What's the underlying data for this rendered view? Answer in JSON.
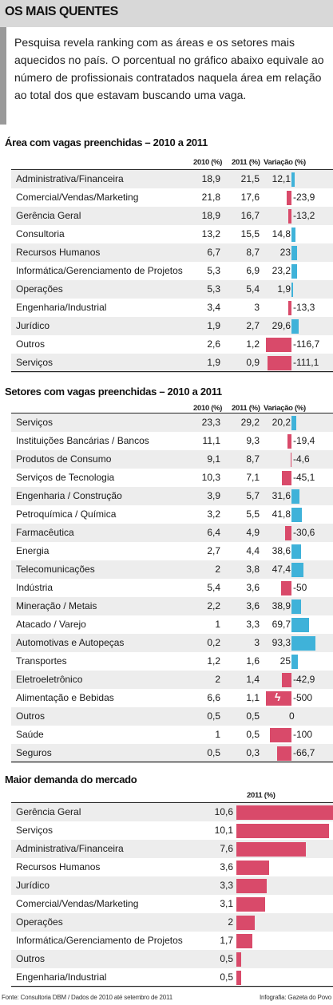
{
  "header": {
    "title": "OS MAIS QUENTES"
  },
  "intro": "Pesquisa revela ranking com as áreas e os setores mais aquecidos no país. O porcentual no gráfico abaixo equivale ao número de profissionais contratados naquela área em relação ao total dos que estavam buscando uma vaga.",
  "colors": {
    "positive": "#3fb2d9",
    "negative": "#d94a6a",
    "demand": "#d94a6a",
    "stripe": "#ededed"
  },
  "chart_data": [
    {
      "type": "table",
      "title": "Área com vagas preenchidas – 2010 a 2011",
      "columns": [
        "2010 (%)",
        "2011 (%)",
        "Variação (%)"
      ],
      "rows": [
        {
          "label": "Administrativa/Financeira",
          "v2010": "18,9",
          "v2011": "21,5",
          "var": "12,1",
          "varv": 12.1
        },
        {
          "label": "Comercial/Vendas/Marketing",
          "v2010": "21,8",
          "v2011": "17,6",
          "var": "-23,9",
          "varv": -23.9
        },
        {
          "label": "Gerência Geral",
          "v2010": "18,9",
          "v2011": "16,7",
          "var": "-13,2",
          "varv": -13.2
        },
        {
          "label": "Consultoria",
          "v2010": "13,2",
          "v2011": "15,5",
          "var": "14,8",
          "varv": 14.8
        },
        {
          "label": "Recursos Humanos",
          "v2010": "6,7",
          "v2011": "8,7",
          "var": "23",
          "varv": 23
        },
        {
          "label": "Informática/Gerenciamento de Projetos",
          "v2010": "5,3",
          "v2011": "6,9",
          "var": "23,2",
          "varv": 23.2
        },
        {
          "label": "Operações",
          "v2010": "5,3",
          "v2011": "5,4",
          "var": "1,9",
          "varv": 1.9
        },
        {
          "label": "Engenharia/Industrial",
          "v2010": "3,4",
          "v2011": "3",
          "var": "-13,3",
          "varv": -13.3
        },
        {
          "label": "Jurídico",
          "v2010": "1,9",
          "v2011": "2,7",
          "var": "29,6",
          "varv": 29.6
        },
        {
          "label": "Outros",
          "v2010": "2,6",
          "v2011": "1,2",
          "var": "-116,7",
          "varv": -116.7
        },
        {
          "label": "Serviços",
          "v2010": "1,9",
          "v2011": "0,9",
          "var": "-111,1",
          "varv": -111.1
        }
      ]
    },
    {
      "type": "table",
      "title": "Setores com vagas preenchidas – 2010 a 2011",
      "columns": [
        "2010 (%)",
        "2011 (%)",
        "Variação (%)"
      ],
      "rows": [
        {
          "label": "Serviços",
          "v2010": "23,3",
          "v2011": "29,2",
          "var": "20,2",
          "varv": 20.2
        },
        {
          "label": "Instituições Bancárias / Bancos",
          "v2010": "11,1",
          "v2011": "9,3",
          "var": "-19,4",
          "varv": -19.4
        },
        {
          "label": "Produtos de Consumo",
          "v2010": "9,1",
          "v2011": "8,7",
          "var": "-4,6",
          "varv": -4.6
        },
        {
          "label": "Serviços de Tecnologia",
          "v2010": "10,3",
          "v2011": "7,1",
          "var": "-45,1",
          "varv": -45.1
        },
        {
          "label": "Engenharia / Construção",
          "v2010": "3,9",
          "v2011": "5,7",
          "var": "31,6",
          "varv": 31.6
        },
        {
          "label": "Petroquímica / Química",
          "v2010": "3,2",
          "v2011": "5,5",
          "var": "41,8",
          "varv": 41.8
        },
        {
          "label": "Farmacêutica",
          "v2010": "6,4",
          "v2011": "4,9",
          "var": "-30,6",
          "varv": -30.6
        },
        {
          "label": "Energia",
          "v2010": "2,7",
          "v2011": "4,4",
          "var": "38,6",
          "varv": 38.6
        },
        {
          "label": "Telecomunicações",
          "v2010": "2",
          "v2011": "3,8",
          "var": "47,4",
          "varv": 47.4
        },
        {
          "label": "Indústria",
          "v2010": "5,4",
          "v2011": "3,6",
          "var": "-50",
          "varv": -50
        },
        {
          "label": "Mineração / Metais",
          "v2010": "2,2",
          "v2011": "3,6",
          "var": "38,9",
          "varv": 38.9
        },
        {
          "label": "Atacado / Varejo",
          "v2010": "1",
          "v2011": "3,3",
          "var": "69,7",
          "varv": 69.7
        },
        {
          "label": "Automotivas e Autopeças",
          "v2010": "0,2",
          "v2011": "3",
          "var": "93,3",
          "varv": 93.3
        },
        {
          "label": "Transportes",
          "v2010": "1,2",
          "v2011": "1,6",
          "var": "25",
          "varv": 25
        },
        {
          "label": "Eletroeletrônico",
          "v2010": "2",
          "v2011": "1,4",
          "var": "-42,9",
          "varv": -42.9
        },
        {
          "label": "Alimentação e Bebidas",
          "v2010": "6,6",
          "v2011": "1,1",
          "var": "-500",
          "varv": -500,
          "broken": true
        },
        {
          "label": "Outros",
          "v2010": "0,5",
          "v2011": "0,5",
          "var": "0",
          "varv": 0
        },
        {
          "label": "Saúde",
          "v2010": "1",
          "v2011": "0,5",
          "var": "-100",
          "varv": -100
        },
        {
          "label": "Seguros",
          "v2010": "0,5",
          "v2011": "0,3",
          "var": "-66,7",
          "varv": -66.7
        }
      ]
    },
    {
      "type": "bar",
      "title": "Maior demanda do mercado",
      "column": "2011 (%)",
      "rows": [
        {
          "label": "Gerência Geral",
          "value": "10,6",
          "v": 10.6
        },
        {
          "label": "Serviços",
          "value": "10,1",
          "v": 10.1
        },
        {
          "label": "Administrativa/Financeira",
          "value": "7,6",
          "v": 7.6
        },
        {
          "label": "Recursos Humanos",
          "value": "3,6",
          "v": 3.6
        },
        {
          "label": "Jurídico",
          "value": "3,3",
          "v": 3.3
        },
        {
          "label": "Comercial/Vendas/Marketing",
          "value": "3,1",
          "v": 3.1
        },
        {
          "label": "Operações",
          "value": "2",
          "v": 2
        },
        {
          "label": "Informática/Gerenciamento de Projetos",
          "value": "1,7",
          "v": 1.7
        },
        {
          "label": "Outros",
          "value": "0,5",
          "v": 0.5
        },
        {
          "label": "Engenharia/Industrial",
          "value": "0,5",
          "v": 0.5
        }
      ]
    }
  ],
  "footer": {
    "source": "Fonte: Consultoria DBM / Dados de 2010 até setembro de 2011",
    "credit": "Infografia: Gazeta do Povo"
  }
}
